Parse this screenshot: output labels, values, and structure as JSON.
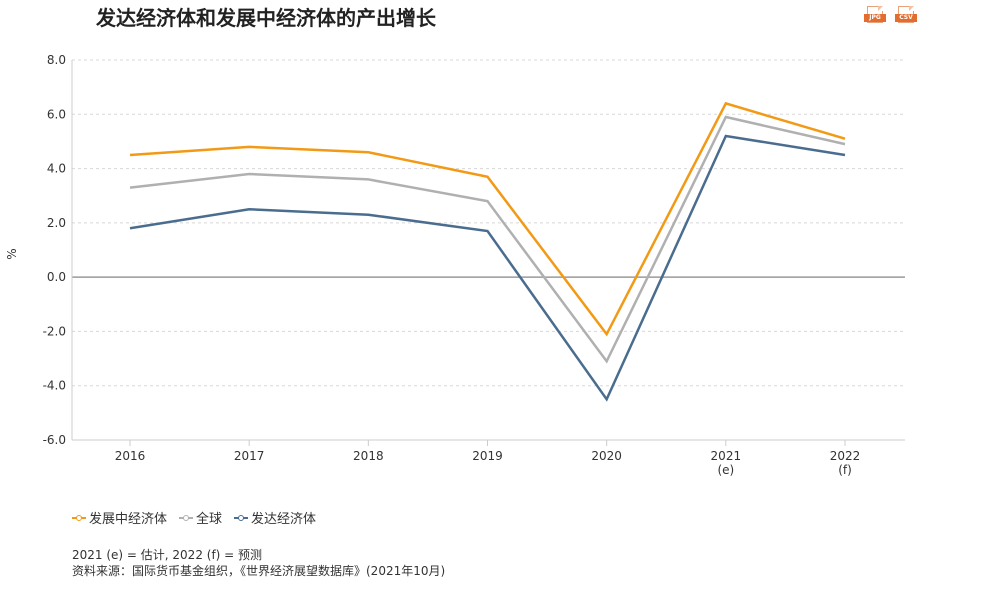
{
  "header": {
    "title": "发达经济体和发展中经济体的产出增长",
    "jpg_label": "JPG",
    "csv_label": "CSV"
  },
  "chart_data": {
    "type": "line",
    "title": "发达经济体和发展中经济体的产出增长",
    "xlabel": "",
    "ylabel": "%",
    "categories": [
      "2016",
      "2017",
      "2018",
      "2019",
      "2020",
      "2021",
      "2022"
    ],
    "category_sublabels": [
      "",
      "",
      "",
      "",
      "",
      "(e)",
      "(f)"
    ],
    "ylim": [
      -6.0,
      8.0
    ],
    "yticks": [
      8.0,
      6.0,
      4.0,
      2.0,
      0.0,
      -2.0,
      -4.0,
      -6.0
    ],
    "ytick_labels": [
      "8.0",
      "6.0",
      "4.0",
      "2.0",
      "0.0",
      "-2.0",
      "-4.0",
      "-6.0"
    ],
    "grid": true,
    "legend_position": "bottom-left",
    "series": [
      {
        "name": "发展中经济体",
        "color": "#f29a15",
        "values": [
          4.5,
          4.8,
          4.6,
          3.7,
          -2.1,
          6.4,
          5.1
        ]
      },
      {
        "name": "全球",
        "color": "#b0b0b0",
        "values": [
          3.3,
          3.8,
          3.6,
          2.8,
          -3.1,
          5.9,
          4.9
        ]
      },
      {
        "name": "发达经济体",
        "color": "#4a6d8f",
        "values": [
          1.8,
          2.5,
          2.3,
          1.7,
          -4.5,
          5.2,
          4.5
        ]
      }
    ]
  },
  "notes": {
    "line1": "2021 (e) = 估计, 2022 (f) = 预测",
    "line2": "资料来源：国际货币基金组织，《世界经济展望数据库》(2021年10月)"
  }
}
